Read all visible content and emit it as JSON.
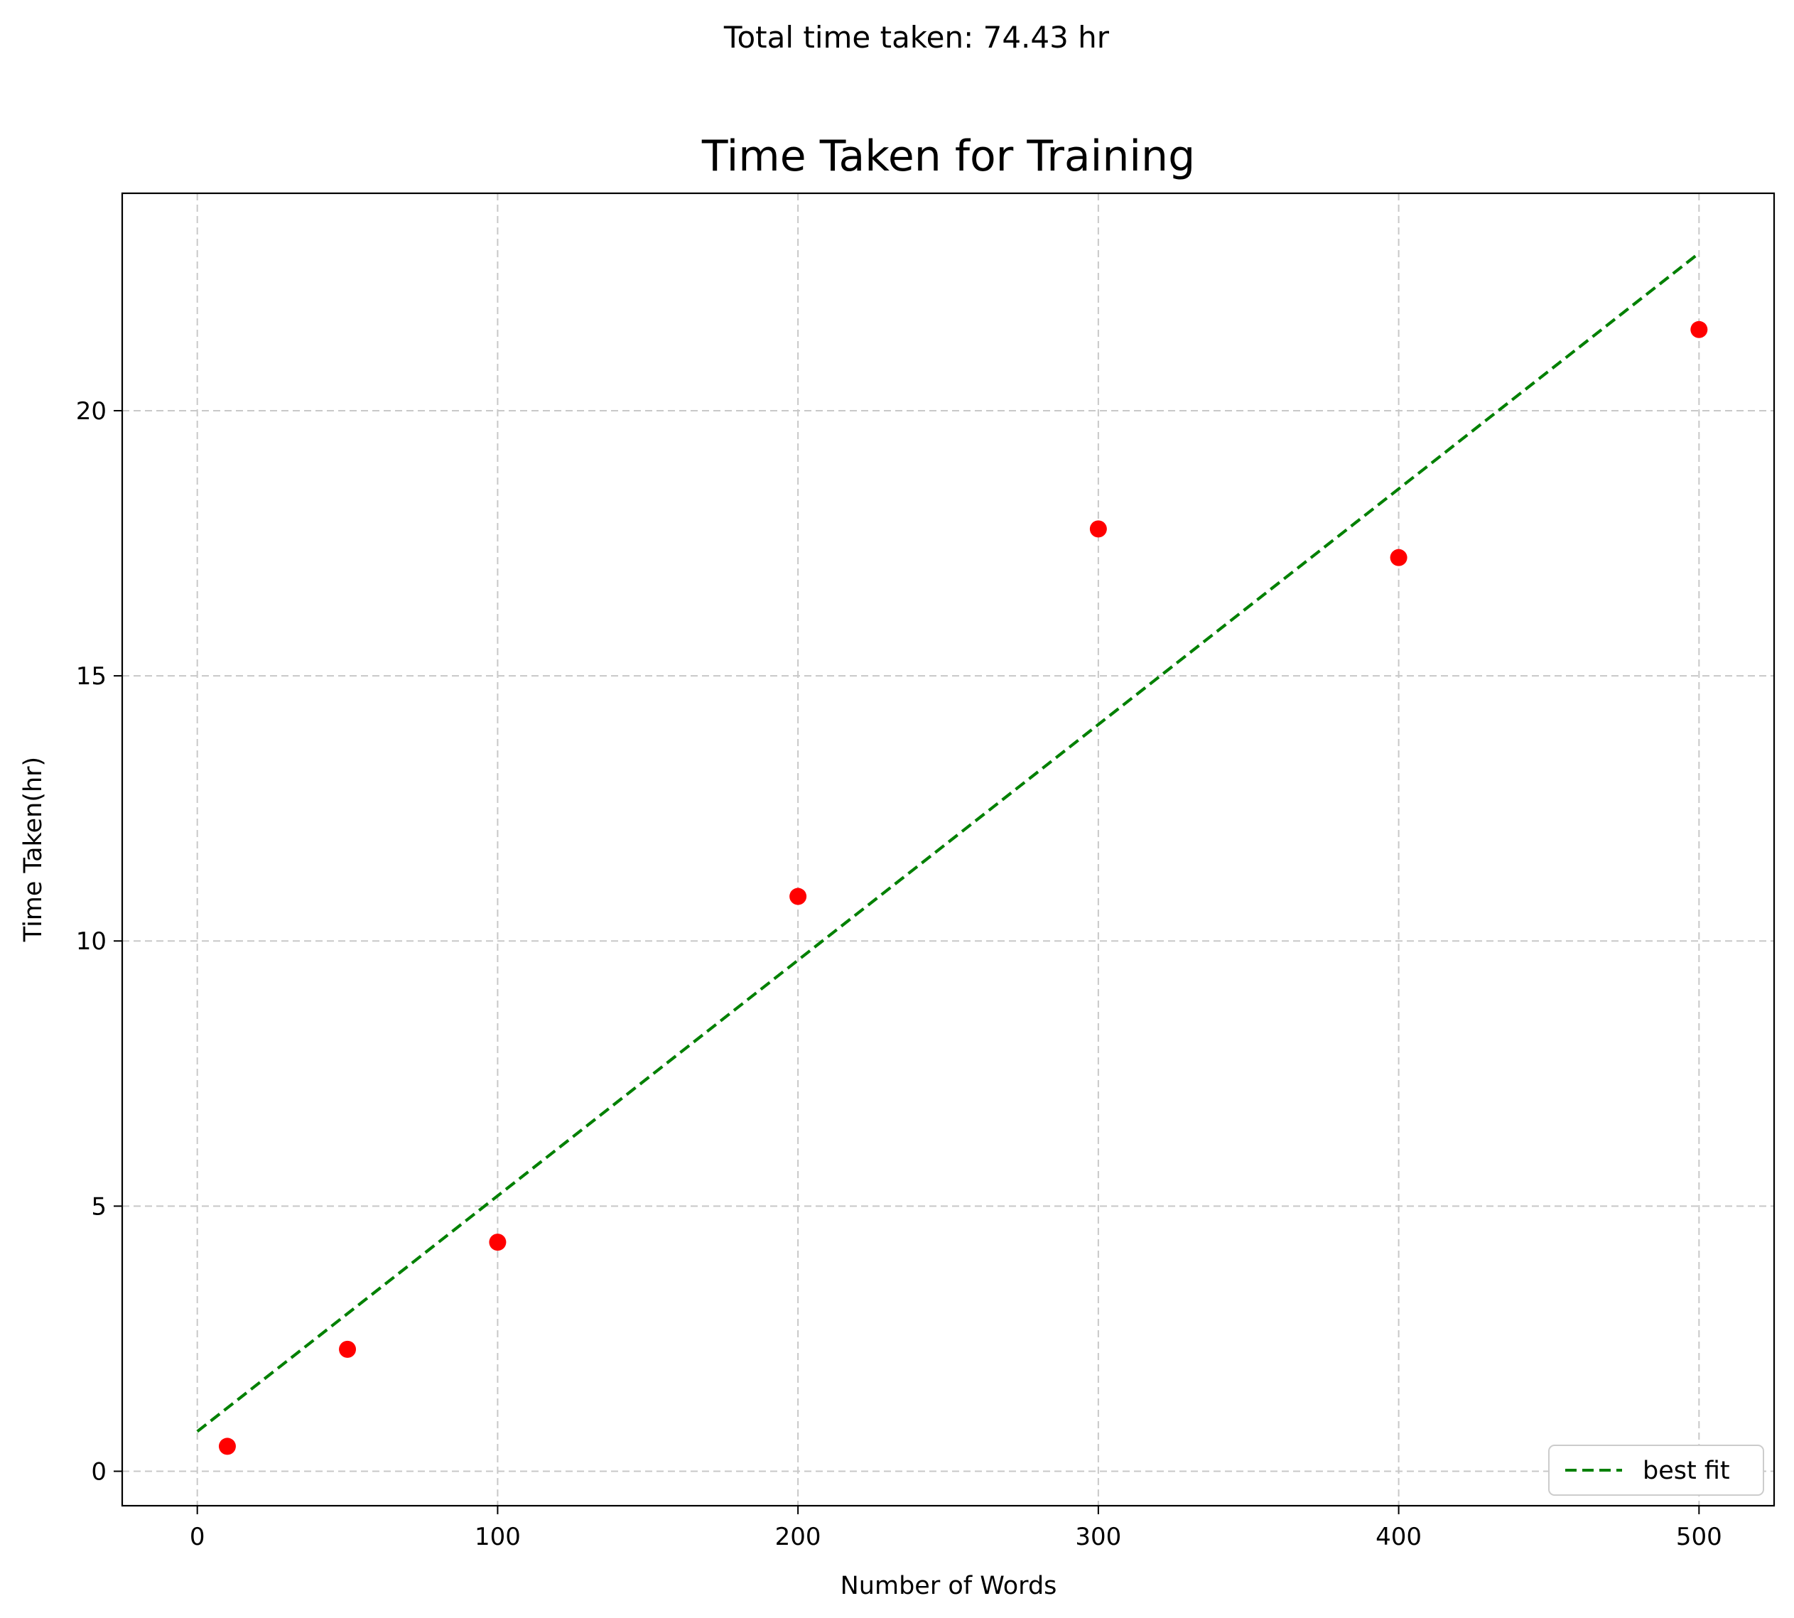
{
  "figure": {
    "suptitle": "Total time taken: 74.43 hr"
  },
  "chart_data": {
    "type": "scatter",
    "title": "Time Taken for Training",
    "xlabel": "Number of Words",
    "ylabel": "Time Taken(hr)",
    "xlim": [
      -25,
      525
    ],
    "ylim": [
      -0.65,
      24.1
    ],
    "xticks": [
      0,
      100,
      200,
      300,
      400,
      500
    ],
    "yticks": [
      0,
      5,
      10,
      15,
      20
    ],
    "grid": true,
    "legend": {
      "placement": "lower-right",
      "entries": [
        "best fit"
      ]
    },
    "series": [
      {
        "kind": "scatter",
        "color": "#ff0000",
        "x": [
          10,
          50,
          100,
          200,
          300,
          400,
          500
        ],
        "y": [
          0.47,
          2.3,
          4.32,
          10.84,
          17.77,
          17.23,
          21.53
        ]
      },
      {
        "name": "best fit",
        "kind": "line",
        "style": "dashed",
        "color": "#008000",
        "x": [
          0,
          500
        ],
        "y": [
          0.75,
          22.97
        ]
      }
    ]
  }
}
